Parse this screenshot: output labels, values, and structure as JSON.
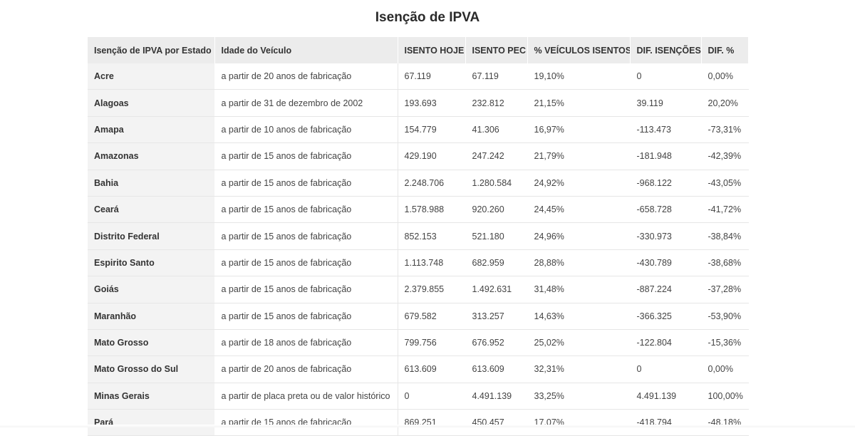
{
  "title": "Isenção de IPVA",
  "table": {
    "headers": [
      "Isenção de IPVA por Estado",
      "Idade do Veículo",
      "ISENTO HOJE",
      "ISENTO PEC",
      "% VEÍCULOS ISENTOS",
      "DIF. ISENÇÕES",
      "DIF. %"
    ],
    "rows": [
      [
        "Acre",
        "a partir de 20 anos de fabricação",
        "67.119",
        "67.119",
        "19,10%",
        "0",
        "0,00%"
      ],
      [
        "Alagoas",
        "a partir de 31 de dezembro de 2002",
        "193.693",
        "232.812",
        "21,15%",
        "39.119",
        "20,20%"
      ],
      [
        "Amapa",
        "a partir de 10 anos de fabricação",
        "154.779",
        "41.306",
        "16,97%",
        "-113.473",
        "-73,31%"
      ],
      [
        "Amazonas",
        "a partir de 15 anos de fabricação",
        "429.190",
        "247.242",
        "21,79%",
        "-181.948",
        "-42,39%"
      ],
      [
        "Bahia",
        "a partir de 15 anos de fabricação",
        "2.248.706",
        "1.280.584",
        "24,92%",
        "-968.122",
        "-43,05%"
      ],
      [
        "Ceará",
        "a partir de 15 anos de fabricação",
        "1.578.988",
        "920.260",
        "24,45%",
        "-658.728",
        "-41,72%"
      ],
      [
        "Distrito Federal",
        "a partir de 15 anos de fabricação",
        "852.153",
        "521.180",
        "24,96%",
        "-330.973",
        "-38,84%"
      ],
      [
        "Espirito Santo",
        "a partir de 15 anos de fabricação",
        "1.113.748",
        "682.959",
        "28,88%",
        "-430.789",
        "-38,68%"
      ],
      [
        "Goiás",
        "a partir de 15 anos de fabricação",
        "2.379.855",
        "1.492.631",
        "31,48%",
        "-887.224",
        "-37,28%"
      ],
      [
        "Maranhão",
        "a partir de 15 anos de fabricação",
        "679.582",
        "313.257",
        "14,63%",
        "-366.325",
        "-53,90%"
      ],
      [
        "Mato Grosso",
        "a partir de 18 anos de fabricação",
        "799.756",
        "676.952",
        "25,02%",
        "-122.804",
        "-15,36%"
      ],
      [
        "Mato Grosso do Sul",
        "a partir de 20 anos de fabricação",
        "613.609",
        "613.609",
        "32,31%",
        "0",
        "0,00%"
      ],
      [
        "Minas Gerais",
        "a partir de placa preta ou de valor histórico",
        "0",
        "4.491.139",
        "33,25%",
        "4.491.139",
        "100,00%"
      ],
      [
        "Pará",
        "a partir de 15 anos de fabricação",
        "869.251",
        "450.457",
        "17,07%",
        "-418.794",
        "-48,18%"
      ]
    ]
  }
}
